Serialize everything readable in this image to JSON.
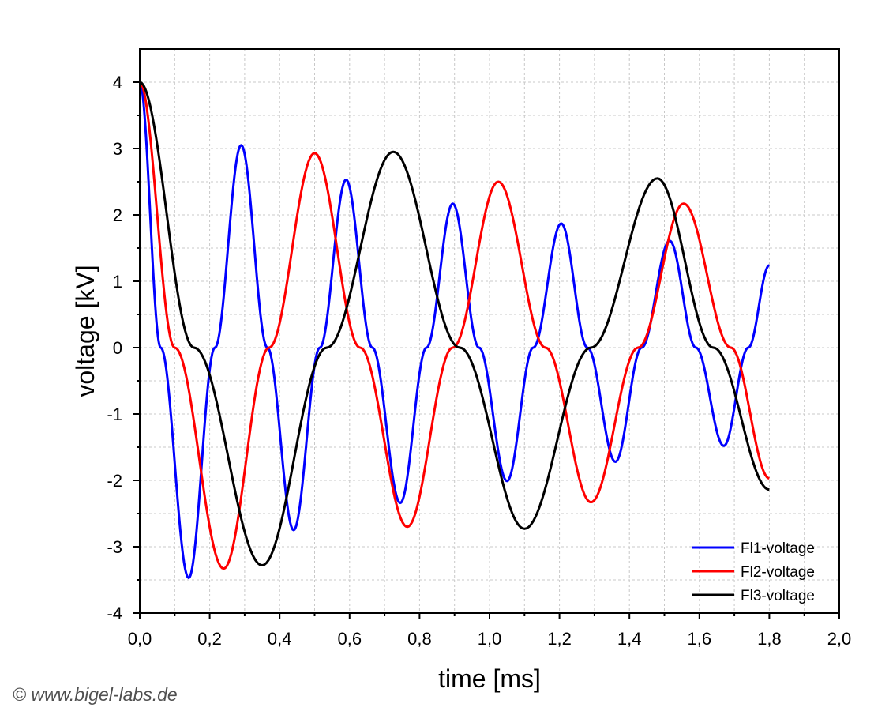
{
  "chart_data": {
    "type": "line",
    "title": "",
    "xlabel": "time [ms]",
    "ylabel": "voltage [kV]",
    "xlim": [
      0,
      2.0
    ],
    "ylim": [
      -4,
      4.5
    ],
    "x_ticks": [
      "0,0",
      "0,2",
      "0,4",
      "0,6",
      "0,8",
      "1,0",
      "1,2",
      "1,4",
      "1,6",
      "1,8",
      "2,0"
    ],
    "y_ticks": [
      "-4",
      "-3",
      "-2",
      "-1",
      "0",
      "1",
      "2",
      "3",
      "4"
    ],
    "grid": true,
    "legend_position": "bottom-right",
    "series": [
      {
        "name": "Fl1-voltage",
        "color": "#0000ff",
        "points": [
          [
            0,
            4.0
          ],
          [
            0.06,
            0.0
          ],
          [
            0.14,
            -3.47
          ],
          [
            0.215,
            0.0
          ],
          [
            0.29,
            3.05
          ],
          [
            0.365,
            0.0
          ],
          [
            0.44,
            -2.75
          ],
          [
            0.515,
            0.0
          ],
          [
            0.59,
            2.53
          ],
          [
            0.665,
            0.0
          ],
          [
            0.745,
            -2.34
          ],
          [
            0.82,
            0.0
          ],
          [
            0.895,
            2.17
          ],
          [
            0.97,
            0.0
          ],
          [
            1.05,
            -2.01
          ],
          [
            1.125,
            0.0
          ],
          [
            1.205,
            1.87
          ],
          [
            1.28,
            0.0
          ],
          [
            1.36,
            -1.72
          ],
          [
            1.435,
            0.0
          ],
          [
            1.515,
            1.61
          ],
          [
            1.59,
            0.0
          ],
          [
            1.67,
            -1.48
          ],
          [
            1.74,
            0.0
          ],
          [
            1.8,
            1.24
          ]
        ]
      },
      {
        "name": "Fl2-voltage",
        "color": "#ff0000",
        "points": [
          [
            0,
            4.0
          ],
          [
            0.1,
            0.0
          ],
          [
            0.24,
            -3.33
          ],
          [
            0.37,
            0.0
          ],
          [
            0.5,
            2.93
          ],
          [
            0.63,
            0.0
          ],
          [
            0.765,
            -2.7
          ],
          [
            0.895,
            0.0
          ],
          [
            1.025,
            2.5
          ],
          [
            1.16,
            0.0
          ],
          [
            1.29,
            -2.33
          ],
          [
            1.425,
            0.0
          ],
          [
            1.555,
            2.17
          ],
          [
            1.69,
            0.0
          ],
          [
            1.8,
            -1.97
          ]
        ]
      },
      {
        "name": "Fl3-voltage",
        "color": "#000000",
        "points": [
          [
            0,
            4.0
          ],
          [
            0.155,
            0.0
          ],
          [
            0.35,
            -3.28
          ],
          [
            0.535,
            0.0
          ],
          [
            0.725,
            2.95
          ],
          [
            0.915,
            0.0
          ],
          [
            1.1,
            -2.73
          ],
          [
            1.29,
            0.0
          ],
          [
            1.48,
            2.55
          ],
          [
            1.64,
            0.0
          ],
          [
            1.8,
            -2.14
          ]
        ]
      }
    ]
  },
  "footer": {
    "copyright": "© www.bigel-labs.de"
  }
}
